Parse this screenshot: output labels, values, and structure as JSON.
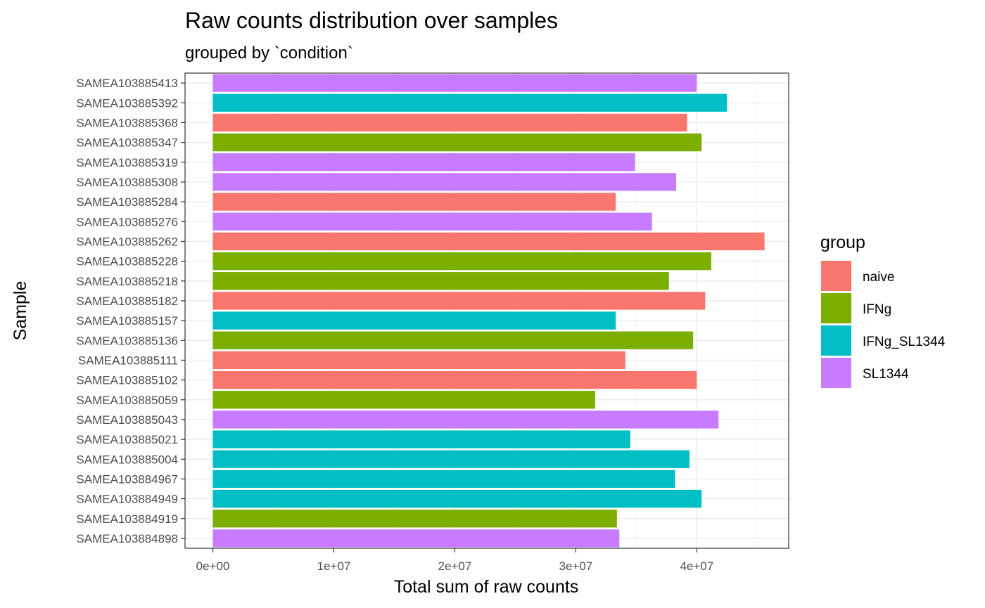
{
  "chart_data": {
    "type": "bar",
    "orientation": "horizontal",
    "title": "Raw counts distribution over samples",
    "subtitle": "grouped by `condition`",
    "xlabel": "Total sum of raw counts",
    "ylabel": "Sample",
    "xlim": [
      -2300000,
      47600000
    ],
    "x_ticks": [
      0,
      10000000,
      20000000,
      30000000,
      40000000
    ],
    "x_tick_labels": [
      "0e+00",
      "1e+07",
      "2e+07",
      "3e+07",
      "4e+07"
    ],
    "grid": true,
    "legend": {
      "title": "group",
      "placement": "right",
      "entries": [
        {
          "name": "naive",
          "color": "#F8766D"
        },
        {
          "name": "IFNg",
          "color": "#7CAE00"
        },
        {
          "name": "IFNg_SL1344",
          "color": "#00BFC4"
        },
        {
          "name": "SL1344",
          "color": "#C77CFF"
        }
      ]
    },
    "categories": [
      "SAMEA103885413",
      "SAMEA103885392",
      "SAMEA103885368",
      "SAMEA103885347",
      "SAMEA103885319",
      "SAMEA103885308",
      "SAMEA103885284",
      "SAMEA103885276",
      "SAMEA103885262",
      "SAMEA103885228",
      "SAMEA103885218",
      "SAMEA103885182",
      "SAMEA103885157",
      "SAMEA103885136",
      "SAMEA103885111",
      "SAMEA103885102",
      "SAMEA103885059",
      "SAMEA103885043",
      "SAMEA103885021",
      "SAMEA103885004",
      "SAMEA103884967",
      "SAMEA103884949",
      "SAMEA103884919",
      "SAMEA103884898"
    ],
    "values": [
      40000000,
      42500000,
      39200000,
      40400000,
      34900000,
      38300000,
      33300000,
      36300000,
      45600000,
      41200000,
      37700000,
      40700000,
      33300000,
      39700000,
      34100000,
      40000000,
      31600000,
      41800000,
      34500000,
      39400000,
      38200000,
      40400000,
      33400000,
      33600000
    ],
    "groups": [
      "SL1344",
      "IFNg_SL1344",
      "naive",
      "IFNg",
      "SL1344",
      "SL1344",
      "naive",
      "SL1344",
      "naive",
      "IFNg",
      "IFNg",
      "naive",
      "IFNg_SL1344",
      "IFNg",
      "naive",
      "naive",
      "IFNg",
      "SL1344",
      "IFNg_SL1344",
      "IFNg_SL1344",
      "IFNg_SL1344",
      "IFNg_SL1344",
      "IFNg",
      "SL1344"
    ]
  }
}
